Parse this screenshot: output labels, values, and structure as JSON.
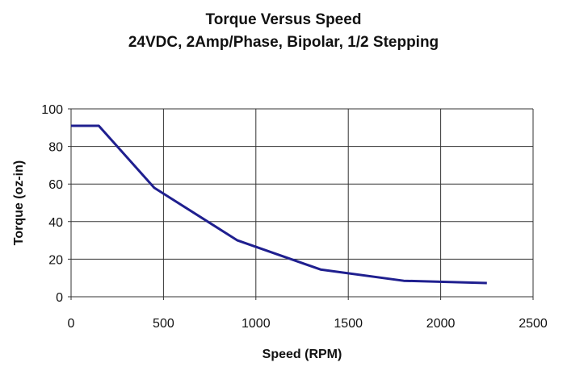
{
  "chart_data": {
    "type": "line",
    "title": "Torque Versus Speed",
    "subtitle": "24VDC, 2Amp/Phase, Bipolar, 1/2 Stepping",
    "xlabel": "Speed (RPM)",
    "ylabel": "Torque (oz-in)",
    "xlim": [
      0,
      2500
    ],
    "ylim": [
      0,
      100
    ],
    "xticks": [
      0,
      500,
      1000,
      1500,
      2000,
      2500
    ],
    "yticks": [
      0,
      20,
      40,
      60,
      80,
      100
    ],
    "grid": true,
    "line_color": "#1f1f8f",
    "series": [
      {
        "x": [
          0,
          150,
          450,
          900,
          1350,
          1800,
          2250
        ],
        "y": [
          91,
          91,
          58,
          30,
          14.5,
          8.5,
          7.3
        ]
      }
    ]
  }
}
